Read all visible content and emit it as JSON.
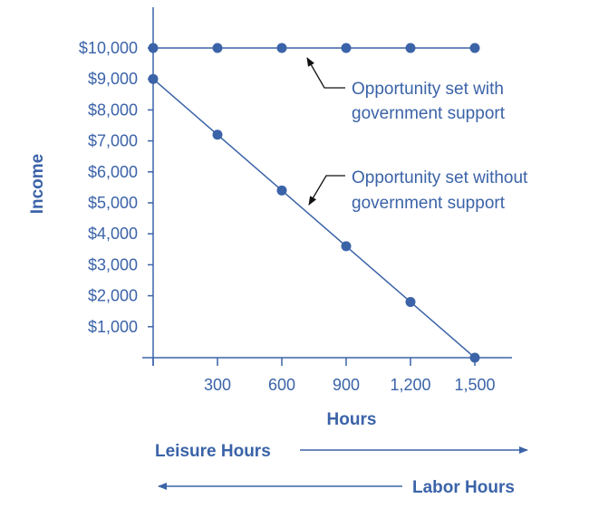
{
  "colors": {
    "accent": "#3b63a8",
    "annotation_arrow": "#111111"
  },
  "chart_data": {
    "type": "line",
    "xlabel": "Hours",
    "ylabel": "Income",
    "xlim": [
      0,
      1500
    ],
    "ylim": [
      0,
      10000
    ],
    "x_ticks": [
      300,
      600,
      900,
      1200,
      1500
    ],
    "x_tick_labels": [
      "300",
      "600",
      "900",
      "1,200",
      "1,500"
    ],
    "y_ticks": [
      1000,
      2000,
      3000,
      4000,
      5000,
      6000,
      7000,
      8000,
      9000,
      10000
    ],
    "y_tick_labels": [
      "$1,000",
      "$2,000",
      "$3,000",
      "$4,000",
      "$5,000",
      "$6,000",
      "$7,000",
      "$8,000",
      "$9,000",
      "$10,000"
    ],
    "grid": false,
    "series": [
      {
        "key": "with_support",
        "x": [
          0,
          300,
          600,
          900,
          1200,
          1500
        ],
        "y": [
          10000,
          10000,
          10000,
          10000,
          10000,
          10000
        ]
      },
      {
        "key": "without_support",
        "x": [
          0,
          300,
          600,
          900,
          1200,
          1500
        ],
        "y": [
          9000,
          7200,
          5400,
          3600,
          1800,
          0
        ]
      }
    ],
    "annotations": {
      "with_support": [
        "Opportunity set with",
        "government support"
      ],
      "without_support": [
        "Opportunity set without",
        "government support"
      ]
    },
    "direction_labels": {
      "leisure": "Leisure Hours",
      "labor": "Labor Hours"
    }
  }
}
